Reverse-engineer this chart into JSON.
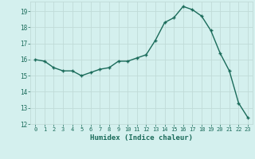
{
  "x": [
    0,
    1,
    2,
    3,
    4,
    5,
    6,
    7,
    8,
    9,
    10,
    11,
    12,
    13,
    14,
    15,
    16,
    17,
    18,
    19,
    20,
    21,
    22,
    23
  ],
  "y": [
    16.0,
    15.9,
    15.5,
    15.3,
    15.3,
    15.0,
    15.2,
    15.4,
    15.5,
    15.9,
    15.9,
    16.1,
    16.3,
    17.2,
    18.3,
    18.6,
    19.3,
    19.1,
    18.7,
    17.8,
    16.4,
    15.3,
    13.3,
    12.4
  ],
  "title": "",
  "xlabel": "Humidex (Indice chaleur)",
  "line_color": "#1a6b5a",
  "marker_color": "#1a6b5a",
  "bg_color": "#d4f0ee",
  "grid_color": "#c0dbd8",
  "text_color": "#1a6b5a",
  "ylim_min": 12,
  "ylim_max": 19.6,
  "xlim_min": -0.5,
  "xlim_max": 23.5,
  "yticks": [
    12,
    13,
    14,
    15,
    16,
    17,
    18,
    19
  ],
  "xticks": [
    0,
    1,
    2,
    3,
    4,
    5,
    6,
    7,
    8,
    9,
    10,
    11,
    12,
    13,
    14,
    15,
    16,
    17,
    18,
    19,
    20,
    21,
    22,
    23
  ]
}
